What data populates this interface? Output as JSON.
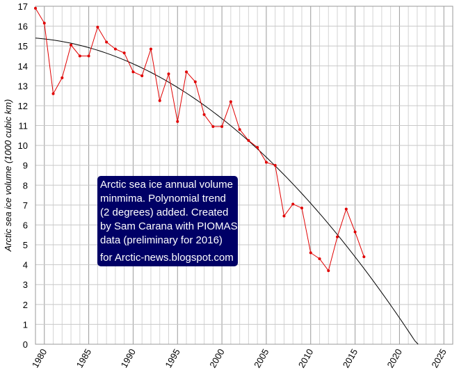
{
  "chart_data": {
    "type": "line",
    "title": "",
    "xlabel": "",
    "ylabel": "Arctic sea ice volume (1000 cubic km)",
    "xlim": [
      1979,
      2026
    ],
    "ylim": [
      0,
      17
    ],
    "x_ticks": [
      1980,
      1985,
      1990,
      1995,
      2000,
      2005,
      2010,
      2015,
      2020,
      2025
    ],
    "y_ticks": [
      0,
      1,
      2,
      3,
      4,
      5,
      6,
      7,
      8,
      9,
      10,
      11,
      12,
      13,
      14,
      15,
      16,
      17
    ],
    "grid": true,
    "legend": "none",
    "series": [
      {
        "color": "#e00000",
        "x": [
          1979,
          1980,
          1981,
          1982,
          1983,
          1984,
          1985,
          1986,
          1987,
          1988,
          1989,
          1990,
          1991,
          1992,
          1993,
          1994,
          1995,
          1996,
          1997,
          1998,
          1999,
          2000,
          2001,
          2002,
          2003,
          2004,
          2005,
          2006,
          2007,
          2008,
          2009,
          2010,
          2011,
          2012,
          2013,
          2014,
          2015,
          2016
        ],
        "values": [
          16.9,
          16.15,
          12.6,
          13.4,
          15.05,
          14.5,
          14.5,
          15.95,
          15.2,
          14.85,
          14.65,
          13.7,
          13.5,
          14.85,
          12.25,
          13.6,
          11.2,
          13.7,
          13.2,
          11.55,
          10.95,
          10.95,
          12.2,
          10.8,
          10.25,
          9.9,
          9.15,
          9.0,
          6.45,
          7.05,
          6.85,
          4.6,
          4.3,
          3.7,
          5.4,
          6.8,
          5.65,
          4.4
        ]
      }
    ],
    "trend": {
      "type": "polynomial",
      "degree": 2,
      "color": "#000000",
      "x_range": [
        1979,
        2022.1
      ],
      "coefficients_about_1979": {
        "a": 15.4,
        "b": -0.035,
        "c": -0.00752
      }
    },
    "annotation": {
      "background": "#000066",
      "text_color": "#ffffff",
      "lines": [
        "Arctic sea ice annual volume",
        "minmima. Polynomial trend",
        "(2 degrees) added. Created",
        "by Sam Carana with PIOMAS",
        "data (preliminary for 2016)",
        "for Arctic-news.blogspot.com"
      ]
    }
  }
}
